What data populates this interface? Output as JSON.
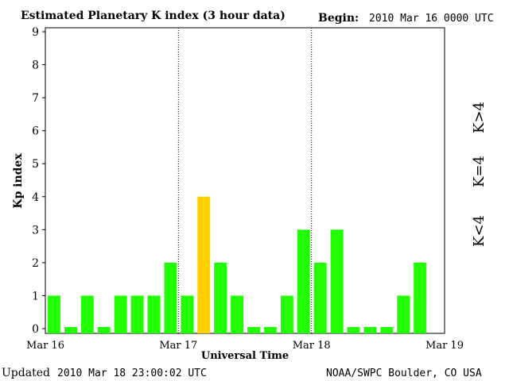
{
  "header": {
    "title": "Estimated Planetary K index (3 hour data)",
    "begin_label": "Begin:",
    "begin_value": "2010 Mar 16 0000 UTC"
  },
  "footer": {
    "updated_label": "Updated",
    "updated_value": "2010 Mar 18 23:00:02 UTC",
    "source": "NOAA/SWPC Boulder, CO USA"
  },
  "legend": {
    "high": "K>4",
    "equal": "K=4",
    "low": "K<4"
  },
  "colors": {
    "low": "#22ff00",
    "equal": "#ffd000",
    "high": "#ff2a00",
    "axis": "#000000"
  },
  "chart_data": {
    "type": "bar",
    "title": "Estimated Planetary K index (3 hour data)",
    "xlabel": "Universal Time",
    "ylabel": "Kp index",
    "ylim": [
      0,
      9
    ],
    "yticks": [
      0,
      1,
      2,
      3,
      4,
      5,
      6,
      7,
      8,
      9
    ],
    "xticks": [
      "Mar 16",
      "Mar 17",
      "Mar 18",
      "Mar 19"
    ],
    "day_separators": [
      "Mar 17",
      "Mar 18"
    ],
    "interval_hours": 3,
    "categories": [
      "Mar 16 00",
      "Mar 16 03",
      "Mar 16 06",
      "Mar 16 09",
      "Mar 16 12",
      "Mar 16 15",
      "Mar 16 18",
      "Mar 16 21",
      "Mar 17 00",
      "Mar 17 03",
      "Mar 17 06",
      "Mar 17 09",
      "Mar 17 12",
      "Mar 17 15",
      "Mar 17 18",
      "Mar 17 21",
      "Mar 18 00",
      "Mar 18 03",
      "Mar 18 06",
      "Mar 18 09",
      "Mar 18 12",
      "Mar 18 15",
      "Mar 18 18",
      "Mar 18 21"
    ],
    "values": [
      1,
      0,
      1,
      0,
      1,
      1,
      1,
      2,
      1,
      4,
      2,
      1,
      0,
      0,
      1,
      3,
      2,
      3,
      0,
      0,
      0,
      1,
      2,
      null
    ]
  }
}
